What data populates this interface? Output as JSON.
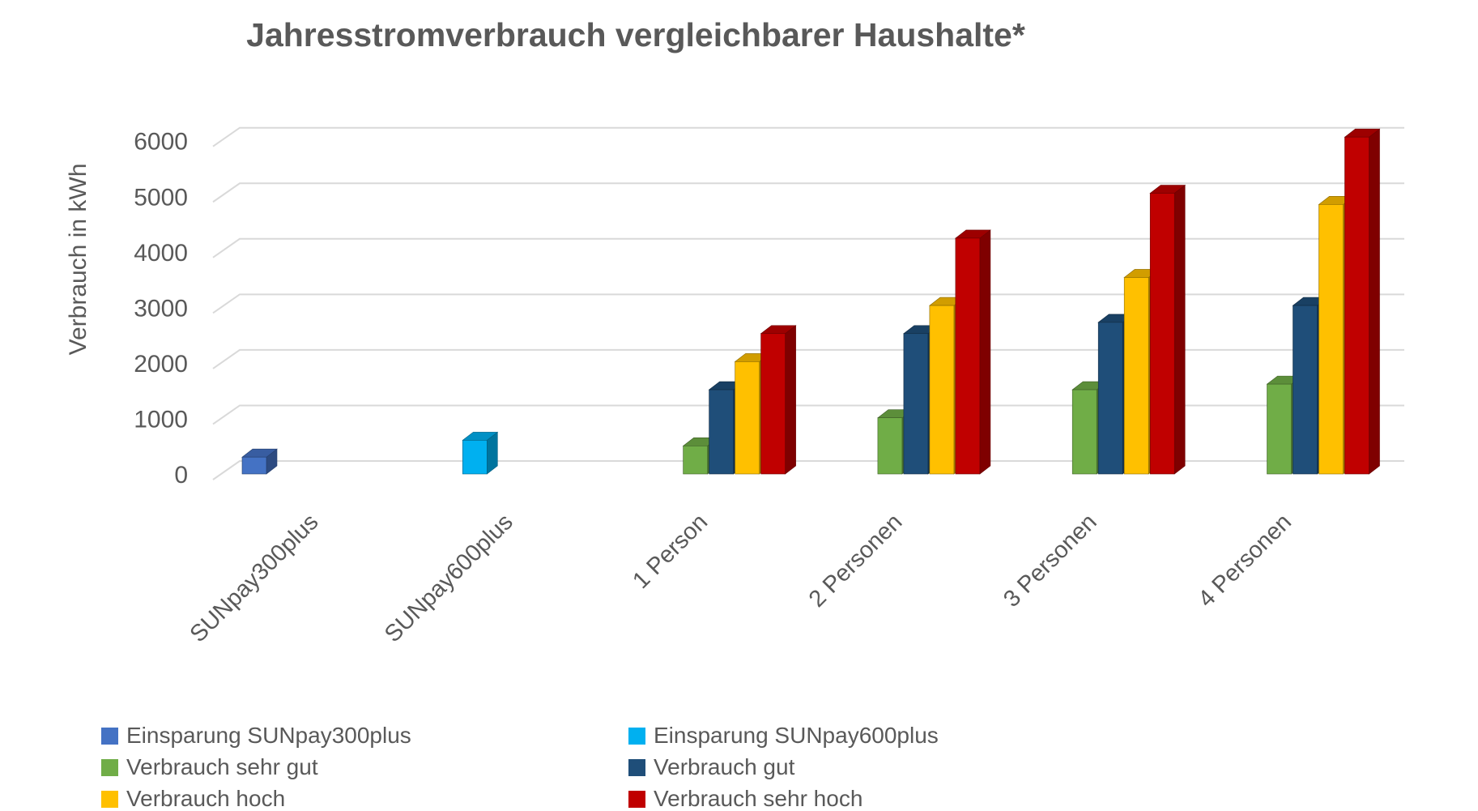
{
  "title": "Jahresstromverbrauch vergleichbarer Haushalte*",
  "chart_data": {
    "type": "bar",
    "style": "3d-clustered-column",
    "title": "Jahresstromverbrauch vergleichbarer Haushalte*",
    "xlabel": "",
    "ylabel": "Verbrauch in kWh",
    "ylim": [
      0,
      6000
    ],
    "yticks": [
      0,
      1000,
      2000,
      3000,
      4000,
      5000,
      6000
    ],
    "grid": true,
    "legend_position": "bottom-two-columns",
    "categories": [
      "SUNpay300plus",
      "SUNpay600plus",
      "1 Person",
      "2 Personen",
      "3 Personen",
      "4 Personen"
    ],
    "series": [
      {
        "name": "Einsparung SUNpay300plus",
        "color": "#4472C4",
        "values": [
          300,
          null,
          null,
          null,
          null,
          null
        ]
      },
      {
        "name": "Einsparung SUNpay600plus",
        "color": "#00B0F0",
        "values": [
          null,
          600,
          null,
          null,
          null,
          null
        ]
      },
      {
        "name": "Verbrauch sehr gut",
        "color": "#70AD47",
        "values": [
          null,
          null,
          500,
          1000,
          1500,
          1600
        ]
      },
      {
        "name": "Verbrauch gut",
        "color": "#1F4E79",
        "values": [
          null,
          null,
          1500,
          2500,
          2700,
          3000
        ]
      },
      {
        "name": "Verbrauch hoch",
        "color": "#FFC000",
        "values": [
          null,
          null,
          2000,
          3000,
          3500,
          4800
        ]
      },
      {
        "name": "Verbrauch sehr hoch",
        "color": "#C00000",
        "values": [
          null,
          null,
          2500,
          4200,
          5000,
          6000
        ]
      }
    ]
  },
  "colors": {
    "text": "#595959",
    "gridline": "#D9D9D9",
    "background": "#FFFFFF"
  }
}
